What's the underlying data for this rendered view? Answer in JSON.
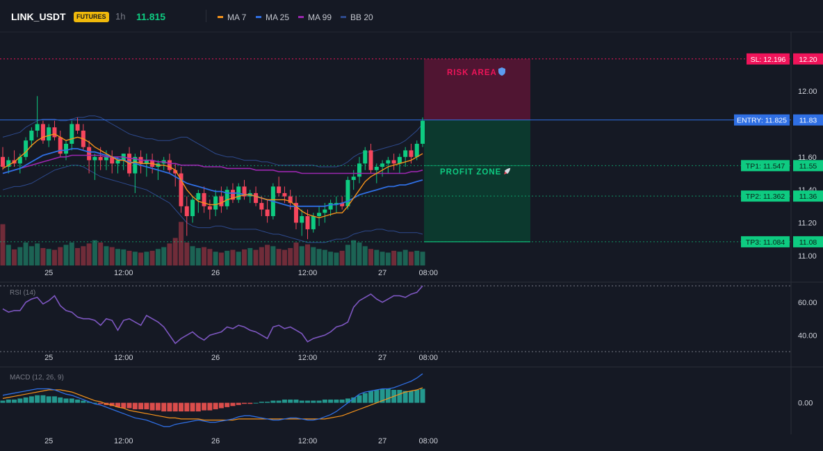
{
  "header": {
    "symbol": "LINK_USDT",
    "badge": "FUTURES",
    "timeframe": "1h",
    "last_price": "11.815",
    "legend": [
      {
        "label": "MA 7",
        "color": "#f7931a"
      },
      {
        "label": "MA 25",
        "color": "#2f6fe4"
      },
      {
        "label": "MA 99",
        "color": "#9c27b0"
      },
      {
        "label": "BB 20",
        "color": "#2e4b8f"
      }
    ]
  },
  "colors": {
    "background": "#151924",
    "up": "#0ecb81",
    "down": "#f6465d",
    "ma7": "#f7931a",
    "ma25": "#2f6fe4",
    "ma99": "#9c27b0",
    "bb": "#2e4b8f",
    "entry": "#2f6fe4",
    "sl": "#f0145a",
    "tp": "#0ecb81",
    "rsi": "#7e57c2",
    "macd": "#2f6fe4",
    "signal": "#f7931a"
  },
  "chart_data": [
    {
      "type": "candlestick",
      "title": "LINK_USDT 1h",
      "x_ticks": [
        "25",
        "12:00",
        "26",
        "12:00",
        "27",
        "08:00"
      ],
      "y_ticks": [
        "11.00",
        "11.20",
        "11.40",
        "11.60",
        "12.00"
      ],
      "ylim": [
        10.94,
        12.36
      ],
      "candles": [
        [
          11.6,
          11.66,
          11.52,
          11.54
        ],
        [
          11.54,
          11.6,
          11.5,
          11.58
        ],
        [
          11.58,
          11.64,
          11.54,
          11.56
        ],
        [
          11.56,
          11.62,
          11.5,
          11.6
        ],
        [
          11.6,
          11.72,
          11.58,
          11.7
        ],
        [
          11.7,
          11.78,
          11.66,
          11.76
        ],
        [
          11.76,
          11.97,
          11.72,
          11.8
        ],
        [
          11.8,
          11.82,
          11.68,
          11.7
        ],
        [
          11.7,
          11.8,
          11.66,
          11.78
        ],
        [
          11.78,
          11.82,
          11.7,
          11.72
        ],
        [
          11.72,
          11.76,
          11.6,
          11.62
        ],
        [
          11.62,
          11.7,
          11.58,
          11.68
        ],
        [
          11.68,
          11.82,
          11.64,
          11.8
        ],
        [
          11.8,
          11.84,
          11.74,
          11.76
        ],
        [
          11.76,
          11.8,
          11.64,
          11.66
        ],
        [
          11.66,
          11.7,
          11.5,
          11.58
        ],
        [
          11.58,
          11.62,
          11.46,
          11.6
        ],
        [
          11.6,
          11.66,
          11.52,
          11.58
        ],
        [
          11.58,
          11.64,
          11.52,
          11.6
        ],
        [
          11.6,
          11.64,
          11.5,
          11.56
        ],
        [
          11.56,
          11.6,
          11.5,
          11.58
        ],
        [
          11.58,
          11.62,
          11.52,
          11.62
        ],
        [
          11.62,
          11.66,
          11.48,
          11.5
        ],
        [
          11.5,
          11.62,
          11.38,
          11.6
        ],
        [
          11.6,
          11.64,
          11.5,
          11.56
        ],
        [
          11.56,
          11.62,
          11.48,
          11.58
        ],
        [
          11.58,
          11.62,
          11.5,
          11.54
        ],
        [
          11.54,
          11.58,
          11.46,
          11.56
        ],
        [
          11.56,
          11.6,
          11.52,
          11.58
        ],
        [
          11.58,
          11.62,
          11.5,
          11.52
        ],
        [
          11.52,
          11.56,
          11.42,
          11.5
        ],
        [
          11.5,
          11.54,
          11.26,
          11.3
        ],
        [
          11.3,
          11.36,
          11.12,
          11.24
        ],
        [
          11.24,
          11.36,
          11.2,
          11.34
        ],
        [
          11.34,
          11.4,
          11.26,
          11.38
        ],
        [
          11.38,
          11.42,
          11.26,
          11.3
        ],
        [
          11.3,
          11.34,
          11.22,
          11.28
        ],
        [
          11.28,
          11.4,
          11.24,
          11.36
        ],
        [
          11.36,
          11.42,
          11.26,
          11.3
        ],
        [
          11.3,
          11.42,
          11.28,
          11.4
        ],
        [
          11.4,
          11.44,
          11.32,
          11.34
        ],
        [
          11.34,
          11.44,
          11.32,
          11.42
        ],
        [
          11.42,
          11.46,
          11.34,
          11.36
        ],
        [
          11.36,
          11.4,
          11.32,
          11.38
        ],
        [
          11.38,
          11.42,
          11.3,
          11.32
        ],
        [
          11.32,
          11.36,
          11.24,
          11.28
        ],
        [
          11.28,
          11.34,
          11.2,
          11.24
        ],
        [
          11.24,
          11.44,
          11.22,
          11.42
        ],
        [
          11.42,
          11.48,
          11.36,
          11.38
        ],
        [
          11.38,
          11.42,
          11.32,
          11.36
        ],
        [
          11.36,
          11.4,
          11.28,
          11.32
        ],
        [
          11.32,
          11.36,
          11.16,
          11.2
        ],
        [
          11.2,
          11.28,
          11.12,
          11.24
        ],
        [
          11.24,
          11.28,
          11.1,
          11.16
        ],
        [
          11.16,
          11.26,
          11.14,
          11.24
        ],
        [
          11.24,
          11.3,
          11.18,
          11.26
        ],
        [
          11.26,
          11.32,
          11.2,
          11.28
        ],
        [
          11.28,
          11.34,
          11.24,
          11.32
        ],
        [
          11.32,
          11.36,
          11.26,
          11.32
        ],
        [
          11.32,
          11.36,
          11.28,
          11.3
        ],
        [
          11.3,
          11.48,
          11.28,
          11.46
        ],
        [
          11.46,
          11.52,
          11.4,
          11.48
        ],
        [
          11.48,
          11.6,
          11.44,
          11.56
        ],
        [
          11.56,
          11.66,
          11.52,
          11.64
        ],
        [
          11.64,
          11.68,
          11.5,
          11.52
        ],
        [
          11.52,
          11.56,
          11.44,
          11.54
        ],
        [
          11.54,
          11.58,
          11.48,
          11.56
        ],
        [
          11.56,
          11.6,
          11.5,
          11.58
        ],
        [
          11.58,
          11.62,
          11.52,
          11.56
        ],
        [
          11.56,
          11.62,
          11.5,
          11.6
        ],
        [
          11.6,
          11.66,
          11.54,
          11.64
        ],
        [
          11.64,
          11.68,
          11.56,
          11.6
        ],
        [
          11.6,
          11.7,
          11.58,
          11.68
        ],
        [
          11.68,
          11.84,
          11.66,
          11.82
        ]
      ],
      "volume": [
        0.9,
        0.45,
        0.35,
        0.4,
        0.5,
        0.42,
        0.48,
        0.38,
        0.36,
        0.34,
        0.4,
        0.45,
        0.5,
        0.38,
        0.42,
        0.48,
        0.55,
        0.5,
        0.42,
        0.4,
        0.36,
        0.35,
        0.32,
        0.3,
        0.28,
        0.3,
        0.32,
        0.36,
        0.4,
        0.48,
        0.6,
        0.95,
        0.5,
        0.42,
        0.38,
        0.4,
        0.36,
        0.3,
        0.28,
        0.32,
        0.34,
        0.3,
        0.35,
        0.38,
        0.34,
        0.4,
        0.45,
        0.42,
        0.36,
        0.34,
        0.38,
        0.5,
        0.42,
        0.46,
        0.4,
        0.36,
        0.34,
        0.3,
        0.28,
        0.32,
        0.45,
        0.55,
        0.5,
        0.42,
        0.36,
        0.34,
        0.3,
        0.28,
        0.32,
        0.3,
        0.34,
        0.3,
        0.32,
        0.3
      ],
      "ma7": [
        11.53,
        11.55,
        11.57,
        11.6,
        11.63,
        11.67,
        11.7,
        11.72,
        11.73,
        11.74,
        11.72,
        11.7,
        11.71,
        11.72,
        11.71,
        11.69,
        11.66,
        11.64,
        11.62,
        11.6,
        11.58,
        11.58,
        11.56,
        11.57,
        11.56,
        11.56,
        11.56,
        11.55,
        11.55,
        11.54,
        11.52,
        11.46,
        11.4,
        11.36,
        11.33,
        11.32,
        11.31,
        11.31,
        11.32,
        11.34,
        11.35,
        11.36,
        11.37,
        11.37,
        11.36,
        11.35,
        11.34,
        11.34,
        11.34,
        11.34,
        11.33,
        11.3,
        11.27,
        11.25,
        11.24,
        11.23,
        11.24,
        11.25,
        11.26,
        11.26,
        11.3,
        11.35,
        11.4,
        11.45,
        11.48,
        11.5,
        11.52,
        11.54,
        11.55,
        11.56,
        11.57,
        11.58,
        11.6,
        11.62
      ],
      "ma25": [
        11.5,
        11.51,
        11.52,
        11.53,
        11.55,
        11.57,
        11.59,
        11.61,
        11.62,
        11.63,
        11.64,
        11.64,
        11.65,
        11.65,
        11.64,
        11.63,
        11.63,
        11.62,
        11.61,
        11.6,
        11.59,
        11.58,
        11.57,
        11.56,
        11.55,
        11.54,
        11.53,
        11.52,
        11.51,
        11.5,
        11.48,
        11.46,
        11.44,
        11.43,
        11.42,
        11.41,
        11.4,
        11.39,
        11.39,
        11.38,
        11.38,
        11.38,
        11.37,
        11.37,
        11.36,
        11.35,
        11.34,
        11.33,
        11.32,
        11.31,
        11.3,
        11.3,
        11.3,
        11.3,
        11.3,
        11.3,
        11.3,
        11.31,
        11.31,
        11.32,
        11.33,
        11.35,
        11.37,
        11.38,
        11.39,
        11.4,
        11.41,
        11.42,
        11.42,
        11.43,
        11.43,
        11.44,
        11.45,
        11.46
      ],
      "ma99": [
        11.5,
        11.51,
        11.52,
        11.53,
        11.54,
        11.55,
        11.56,
        11.57,
        11.58,
        11.59,
        11.6,
        11.6,
        11.61,
        11.61,
        11.61,
        11.61,
        11.61,
        11.61,
        11.6,
        11.6,
        11.6,
        11.6,
        11.59,
        11.59,
        11.58,
        11.58,
        11.58,
        11.57,
        11.57,
        11.56,
        11.56,
        11.55,
        11.55,
        11.55,
        11.55,
        11.54,
        11.54,
        11.54,
        11.54,
        11.53,
        11.53,
        11.53,
        11.53,
        11.53,
        11.52,
        11.52,
        11.52,
        11.52,
        11.51,
        11.51,
        11.51,
        11.51,
        11.5,
        11.5,
        11.5,
        11.5,
        11.5,
        11.5,
        11.5,
        11.5,
        11.5,
        11.5,
        11.5,
        11.5,
        11.5,
        11.5,
        11.5,
        11.5,
        11.5,
        11.5,
        11.5,
        11.51,
        11.51,
        11.52
      ],
      "bb_upper": [
        11.72,
        11.73,
        11.74,
        11.75,
        11.78,
        11.8,
        11.82,
        11.83,
        11.83,
        11.83,
        11.82,
        11.82,
        11.83,
        11.84,
        11.84,
        11.85,
        11.85,
        11.84,
        11.82,
        11.8,
        11.78,
        11.76,
        11.74,
        11.73,
        11.72,
        11.71,
        11.71,
        11.7,
        11.7,
        11.7,
        11.71,
        11.72,
        11.72,
        11.7,
        11.68,
        11.66,
        11.64,
        11.62,
        11.61,
        11.6,
        11.6,
        11.59,
        11.58,
        11.58,
        11.58,
        11.57,
        11.57,
        11.56,
        11.55,
        11.55,
        11.55,
        11.55,
        11.55,
        11.55,
        11.55,
        11.54,
        11.54,
        11.54,
        11.54,
        11.55,
        11.57,
        11.6,
        11.62,
        11.63,
        11.63,
        11.64,
        11.65,
        11.66,
        11.67,
        11.68,
        11.7,
        11.73,
        11.76,
        11.8
      ],
      "bb_lower": [
        11.4,
        11.41,
        11.42,
        11.42,
        11.43,
        11.44,
        11.46,
        11.48,
        11.5,
        11.52,
        11.53,
        11.54,
        11.55,
        11.55,
        11.54,
        11.52,
        11.5,
        11.48,
        11.47,
        11.46,
        11.45,
        11.44,
        11.43,
        11.42,
        11.41,
        11.4,
        11.38,
        11.36,
        11.34,
        11.32,
        11.28,
        11.24,
        11.2,
        11.18,
        11.17,
        11.17,
        11.17,
        11.18,
        11.18,
        11.17,
        11.16,
        11.16,
        11.16,
        11.16,
        11.16,
        11.15,
        11.14,
        11.13,
        11.13,
        11.12,
        11.11,
        11.1,
        11.09,
        11.08,
        11.08,
        11.08,
        11.08,
        11.09,
        11.1,
        11.1,
        11.11,
        11.13,
        11.14,
        11.15,
        11.15,
        11.16,
        11.16,
        11.15,
        11.15,
        11.14,
        11.14,
        11.14,
        11.14,
        11.13
      ]
    },
    {
      "type": "line",
      "title": "RSI (14)",
      "x_ticks": [
        "25",
        "12:00",
        "26",
        "12:00",
        "27",
        "08:00"
      ],
      "y_ticks": [
        "60.00",
        "40.00"
      ],
      "ylim": [
        30,
        71
      ],
      "values": [
        56,
        54,
        55,
        55,
        60,
        62,
        63,
        59,
        61,
        64,
        58,
        55,
        54,
        51,
        50,
        50,
        49,
        46,
        50,
        49,
        43,
        49,
        50,
        48,
        46,
        52,
        50,
        48,
        45,
        40,
        35,
        38,
        40,
        42,
        39,
        37,
        40,
        41,
        42,
        45,
        44,
        46,
        45,
        43,
        42,
        40,
        38,
        45,
        46,
        44,
        45,
        43,
        41,
        36,
        38,
        39,
        40,
        42,
        45,
        46,
        48,
        57,
        61,
        63,
        65,
        62,
        60,
        62,
        64,
        64,
        63,
        65,
        66,
        70
      ]
    },
    {
      "type": "bar",
      "title": "MACD (12, 26, 9)",
      "x_ticks": [
        "25",
        "12:00",
        "26",
        "12:00",
        "27",
        "08:00"
      ],
      "y_ticks": [
        "0.00"
      ],
      "ylim": [
        -0.26,
        0.32
      ],
      "histogram": [
        0.02,
        0.03,
        0.03,
        0.04,
        0.05,
        0.06,
        0.07,
        0.07,
        0.06,
        0.06,
        0.05,
        0.04,
        0.04,
        0.03,
        0.02,
        0.01,
        0,
        -0.01,
        -0.02,
        -0.03,
        -0.04,
        -0.05,
        -0.05,
        -0.06,
        -0.06,
        -0.06,
        -0.07,
        -0.07,
        -0.08,
        -0.08,
        -0.08,
        -0.08,
        -0.08,
        -0.08,
        -0.08,
        -0.07,
        -0.07,
        -0.06,
        -0.05,
        -0.04,
        -0.03,
        -0.02,
        -0.01,
        -0.01,
        0,
        0.01,
        0.01,
        0.02,
        0.02,
        0.03,
        0.03,
        0.03,
        0.02,
        0.02,
        0.02,
        0.02,
        0.03,
        0.03,
        0.03,
        0.03,
        0.04,
        0.05,
        0.07,
        0.09,
        0.11,
        0.12,
        0.13,
        0.13,
        0.12,
        0.12,
        0.11,
        0.11,
        0.12,
        0.13
      ],
      "macd": [
        0.07,
        0.08,
        0.09,
        0.1,
        0.11,
        0.12,
        0.13,
        0.13,
        0.13,
        0.12,
        0.1,
        0.08,
        0.07,
        0.05,
        0.03,
        0.01,
        -0.01,
        -0.02,
        -0.04,
        -0.06,
        -0.08,
        -0.1,
        -0.12,
        -0.14,
        -0.15,
        -0.16,
        -0.18,
        -0.2,
        -0.22,
        -0.22,
        -0.2,
        -0.19,
        -0.18,
        -0.17,
        -0.16,
        -0.17,
        -0.18,
        -0.18,
        -0.17,
        -0.16,
        -0.15,
        -0.13,
        -0.12,
        -0.12,
        -0.13,
        -0.14,
        -0.15,
        -0.16,
        -0.16,
        -0.15,
        -0.14,
        -0.14,
        -0.15,
        -0.16,
        -0.16,
        -0.15,
        -0.13,
        -0.11,
        -0.08,
        -0.04,
        0,
        0.04,
        0.08,
        0.1,
        0.11,
        0.12,
        0.13,
        0.13,
        0.14,
        0.16,
        0.18,
        0.2,
        0.23,
        0.27
      ],
      "signal": [
        0.04,
        0.05,
        0.06,
        0.07,
        0.08,
        0.09,
        0.1,
        0.11,
        0.12,
        0.12,
        0.12,
        0.11,
        0.1,
        0.08,
        0.06,
        0.04,
        0.02,
        0.01,
        -0.01,
        -0.02,
        -0.04,
        -0.05,
        -0.07,
        -0.08,
        -0.09,
        -0.1,
        -0.11,
        -0.12,
        -0.13,
        -0.14,
        -0.14,
        -0.15,
        -0.15,
        -0.15,
        -0.15,
        -0.16,
        -0.16,
        -0.16,
        -0.16,
        -0.16,
        -0.16,
        -0.15,
        -0.15,
        -0.15,
        -0.15,
        -0.15,
        -0.15,
        -0.15,
        -0.15,
        -0.15,
        -0.15,
        -0.15,
        -0.15,
        -0.15,
        -0.15,
        -0.15,
        -0.15,
        -0.14,
        -0.13,
        -0.12,
        -0.1,
        -0.08,
        -0.06,
        -0.04,
        -0.02,
        0,
        0.02,
        0.04,
        0.06,
        0.08,
        0.1,
        0.11,
        0.12,
        0.14
      ]
    }
  ],
  "trade": {
    "sl_price": 12.196,
    "sl_label": "SL: 12.196",
    "sl_axis": "12.20",
    "entry_price": 11.825,
    "entry_label": "ENTRY: 11.825",
    "entry_axis": "11.83",
    "targets": [
      {
        "price": 11.547,
        "label": "TP1: 11.547",
        "axis": "11.55"
      },
      {
        "price": 11.362,
        "label": "TP2: 11.362",
        "axis": "11.36"
      },
      {
        "price": 11.084,
        "label": "TP3: 11.084",
        "axis": "11.08"
      }
    ],
    "risk_label": "RISK AREA",
    "risk_icon": "shield-icon",
    "profit_label": "PROFIT ZONE",
    "profit_icon": "rocket-icon"
  }
}
